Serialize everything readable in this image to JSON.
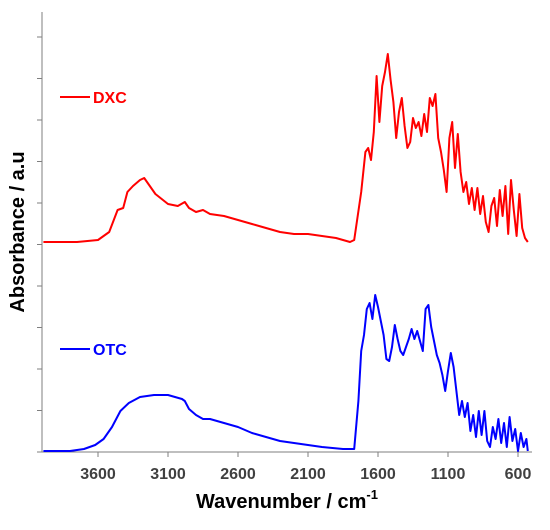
{
  "chart_data": {
    "type": "line",
    "xlabel": "Wavenumber / cm",
    "xlabel_superscript": "-1",
    "ylabel": "Absorbance / a.u",
    "xlim": [
      4000,
      500
    ],
    "x_reversed": true,
    "xticks": [
      3600,
      3100,
      2600,
      2100,
      1600,
      1100,
      600
    ],
    "grid": false,
    "legend_placement": "inline-left",
    "series": [
      {
        "name": "DXC",
        "color": "#ff0000",
        "offset": 1.0,
        "points": [
          [
            3990,
            0.0
          ],
          [
            3750,
            0.0
          ],
          [
            3600,
            0.01
          ],
          [
            3520,
            0.05
          ],
          [
            3460,
            0.16
          ],
          [
            3420,
            0.17
          ],
          [
            3390,
            0.25
          ],
          [
            3350,
            0.28
          ],
          [
            3300,
            0.31
          ],
          [
            3270,
            0.32
          ],
          [
            3240,
            0.29
          ],
          [
            3190,
            0.24
          ],
          [
            3100,
            0.19
          ],
          [
            3030,
            0.18
          ],
          [
            2980,
            0.2
          ],
          [
            2950,
            0.17
          ],
          [
            2900,
            0.15
          ],
          [
            2850,
            0.16
          ],
          [
            2800,
            0.14
          ],
          [
            2700,
            0.13
          ],
          [
            2600,
            0.11
          ],
          [
            2500,
            0.09
          ],
          [
            2400,
            0.07
          ],
          [
            2300,
            0.05
          ],
          [
            2200,
            0.04
          ],
          [
            2100,
            0.04
          ],
          [
            2000,
            0.03
          ],
          [
            1900,
            0.02
          ],
          [
            1800,
            0.0
          ],
          [
            1770,
            0.01
          ],
          [
            1720,
            0.25
          ],
          [
            1690,
            0.45
          ],
          [
            1670,
            0.47
          ],
          [
            1650,
            0.41
          ],
          [
            1630,
            0.55
          ],
          [
            1610,
            0.83
          ],
          [
            1590,
            0.6
          ],
          [
            1570,
            0.78
          ],
          [
            1550,
            0.85
          ],
          [
            1530,
            0.94
          ],
          [
            1510,
            0.81
          ],
          [
            1490,
            0.7
          ],
          [
            1470,
            0.52
          ],
          [
            1450,
            0.65
          ],
          [
            1430,
            0.72
          ],
          [
            1410,
            0.58
          ],
          [
            1390,
            0.47
          ],
          [
            1370,
            0.5
          ],
          [
            1350,
            0.62
          ],
          [
            1330,
            0.57
          ],
          [
            1310,
            0.6
          ],
          [
            1290,
            0.53
          ],
          [
            1270,
            0.64
          ],
          [
            1250,
            0.55
          ],
          [
            1230,
            0.72
          ],
          [
            1210,
            0.68
          ],
          [
            1190,
            0.74
          ],
          [
            1170,
            0.52
          ],
          [
            1150,
            0.45
          ],
          [
            1130,
            0.36
          ],
          [
            1110,
            0.25
          ],
          [
            1090,
            0.52
          ],
          [
            1070,
            0.6
          ],
          [
            1050,
            0.37
          ],
          [
            1030,
            0.54
          ],
          [
            1010,
            0.35
          ],
          [
            990,
            0.25
          ],
          [
            970,
            0.3
          ],
          [
            950,
            0.19
          ],
          [
            930,
            0.27
          ],
          [
            910,
            0.16
          ],
          [
            890,
            0.27
          ],
          [
            870,
            0.14
          ],
          [
            850,
            0.23
          ],
          [
            830,
            0.1
          ],
          [
            810,
            0.05
          ],
          [
            790,
            0.18
          ],
          [
            770,
            0.22
          ],
          [
            750,
            0.08
          ],
          [
            730,
            0.26
          ],
          [
            710,
            0.13
          ],
          [
            690,
            0.28
          ],
          [
            670,
            0.04
          ],
          [
            650,
            0.31
          ],
          [
            630,
            0.16
          ],
          [
            610,
            0.03
          ],
          [
            590,
            0.24
          ],
          [
            570,
            0.07
          ],
          [
            550,
            0.02
          ],
          [
            530,
            0.0
          ]
        ]
      },
      {
        "name": "OTC",
        "color": "#0000ff",
        "offset": 0.0,
        "points": [
          [
            3990,
            0.0
          ],
          [
            3800,
            0.0
          ],
          [
            3700,
            0.01
          ],
          [
            3620,
            0.03
          ],
          [
            3560,
            0.06
          ],
          [
            3500,
            0.12
          ],
          [
            3440,
            0.2
          ],
          [
            3380,
            0.24
          ],
          [
            3300,
            0.27
          ],
          [
            3200,
            0.28
          ],
          [
            3100,
            0.28
          ],
          [
            3050,
            0.27
          ],
          [
            3000,
            0.26
          ],
          [
            2980,
            0.25
          ],
          [
            2950,
            0.21
          ],
          [
            2900,
            0.18
          ],
          [
            2850,
            0.16
          ],
          [
            2800,
            0.16
          ],
          [
            2700,
            0.14
          ],
          [
            2600,
            0.12
          ],
          [
            2500,
            0.09
          ],
          [
            2400,
            0.07
          ],
          [
            2300,
            0.05
          ],
          [
            2200,
            0.04
          ],
          [
            2100,
            0.03
          ],
          [
            2000,
            0.02
          ],
          [
            1850,
            0.01
          ],
          [
            1770,
            0.01
          ],
          [
            1740,
            0.25
          ],
          [
            1720,
            0.5
          ],
          [
            1700,
            0.58
          ],
          [
            1680,
            0.71
          ],
          [
            1660,
            0.74
          ],
          [
            1640,
            0.66
          ],
          [
            1620,
            0.78
          ],
          [
            1600,
            0.72
          ],
          [
            1580,
            0.65
          ],
          [
            1560,
            0.58
          ],
          [
            1540,
            0.46
          ],
          [
            1520,
            0.45
          ],
          [
            1500,
            0.52
          ],
          [
            1480,
            0.63
          ],
          [
            1460,
            0.56
          ],
          [
            1440,
            0.5
          ],
          [
            1420,
            0.48
          ],
          [
            1400,
            0.52
          ],
          [
            1380,
            0.56
          ],
          [
            1360,
            0.61
          ],
          [
            1340,
            0.56
          ],
          [
            1320,
            0.6
          ],
          [
            1300,
            0.55
          ],
          [
            1280,
            0.5
          ],
          [
            1260,
            0.71
          ],
          [
            1240,
            0.73
          ],
          [
            1220,
            0.62
          ],
          [
            1200,
            0.55
          ],
          [
            1180,
            0.48
          ],
          [
            1160,
            0.44
          ],
          [
            1140,
            0.38
          ],
          [
            1120,
            0.3
          ],
          [
            1100,
            0.4
          ],
          [
            1080,
            0.49
          ],
          [
            1060,
            0.42
          ],
          [
            1040,
            0.3
          ],
          [
            1020,
            0.18
          ],
          [
            1000,
            0.25
          ],
          [
            980,
            0.17
          ],
          [
            960,
            0.24
          ],
          [
            940,
            0.1
          ],
          [
            920,
            0.18
          ],
          [
            900,
            0.07
          ],
          [
            880,
            0.2
          ],
          [
            860,
            0.08
          ],
          [
            840,
            0.2
          ],
          [
            820,
            0.05
          ],
          [
            800,
            0.02
          ],
          [
            780,
            0.12
          ],
          [
            760,
            0.06
          ],
          [
            740,
            0.16
          ],
          [
            720,
            0.04
          ],
          [
            700,
            0.14
          ],
          [
            680,
            0.02
          ],
          [
            660,
            0.17
          ],
          [
            640,
            0.05
          ],
          [
            620,
            0.11
          ],
          [
            600,
            0.0
          ],
          [
            580,
            0.09
          ],
          [
            560,
            0.02
          ],
          [
            540,
            0.06
          ],
          [
            530,
            0.0
          ]
        ]
      }
    ]
  }
}
